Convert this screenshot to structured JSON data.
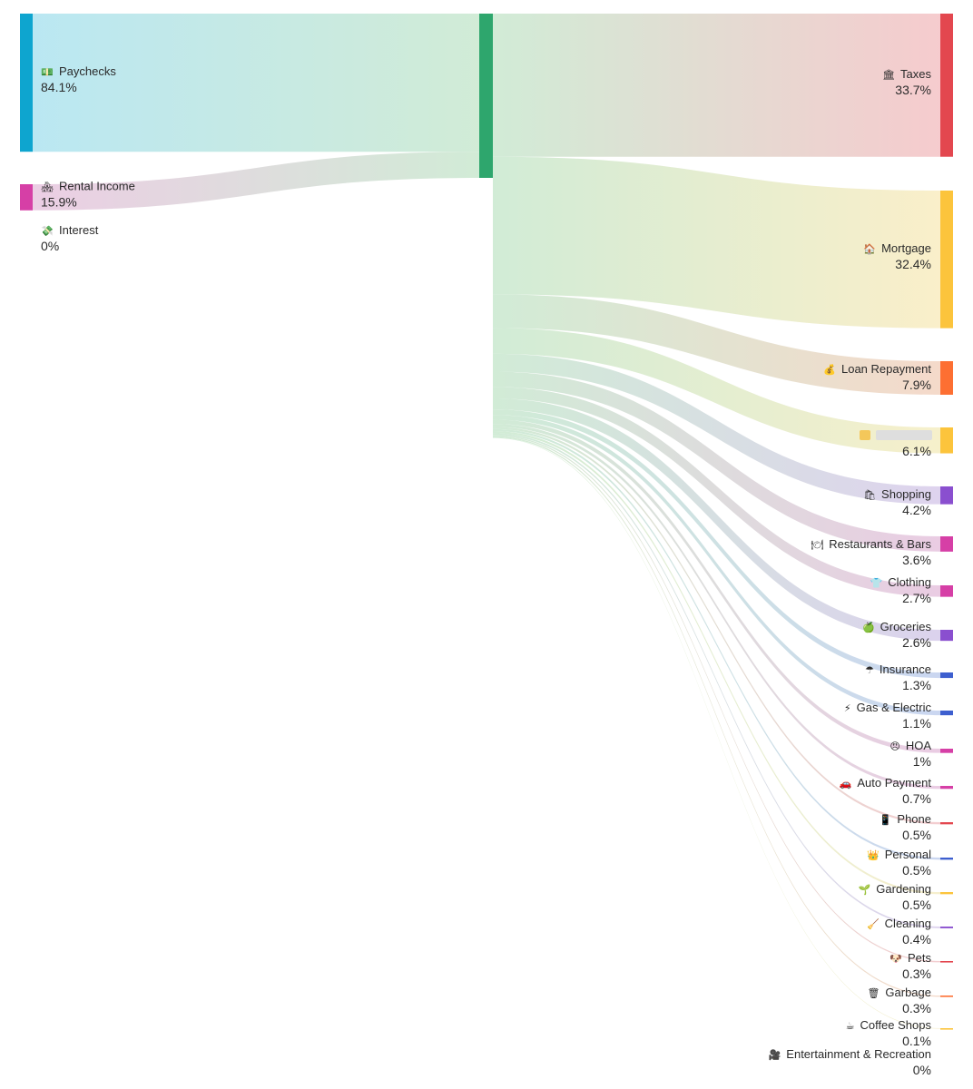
{
  "chart_data": {
    "type": "sankey",
    "sources": [
      {
        "name": "Paychecks",
        "icon": "💵",
        "icon_name": "money-icon",
        "pct": "84.1%",
        "value": 84.1,
        "color": "#0ea5cf",
        "link_color": "#aee3f0"
      },
      {
        "name": "Rental Income",
        "icon": "🏘",
        "icon_name": "houses-icon",
        "pct": "15.9%",
        "value": 15.9,
        "color": "#d63fa6",
        "link_color": "#e8c5df"
      },
      {
        "name": "Interest",
        "icon": "💸",
        "icon_name": "money-wings-icon",
        "pct": "0%",
        "value": 0,
        "color": "#7c6fd8",
        "link_color": "#dcd7f5"
      }
    ],
    "hub": {
      "color": "#2ea66d",
      "link_color": "#c9e8cf"
    },
    "targets": [
      {
        "name": "Taxes",
        "icon": "🏛",
        "icon_name": "government-building-icon",
        "pct": "33.7%",
        "value": 33.7,
        "color": "#e3474f",
        "link_color": "#f4c2c5"
      },
      {
        "name": "Mortgage",
        "icon": "🏠",
        "icon_name": "house-icon",
        "pct": "32.4%",
        "value": 32.4,
        "color": "#fcc43c",
        "link_color": "#f9ecc0"
      },
      {
        "name": "Loan Repayment",
        "icon": "💰",
        "icon_name": "money-bag-icon",
        "pct": "7.9%",
        "value": 7.9,
        "color": "#fd6f32",
        "link_color": "#f3d3c1"
      },
      {
        "name": "",
        "icon": "",
        "icon_name": "redacted-icon",
        "pct": "6.1%",
        "value": 6.1,
        "color": "#fcc43c",
        "link_color": "#f5edc2",
        "redacted": true
      },
      {
        "name": "Shopping",
        "icon": "🛍",
        "icon_name": "shopping-bags-icon",
        "pct": "4.2%",
        "value": 4.2,
        "color": "#8a4fcf",
        "link_color": "#d8cbeb"
      },
      {
        "name": "Restaurants & Bars",
        "icon": "🍽",
        "icon_name": "plate-icon",
        "pct": "3.6%",
        "value": 3.6,
        "color": "#d63fa6",
        "link_color": "#e6c3de"
      },
      {
        "name": "Clothing",
        "icon": "👕",
        "icon_name": "shirt-icon",
        "pct": "2.7%",
        "value": 2.7,
        "color": "#d63fa6",
        "link_color": "#e6c3de"
      },
      {
        "name": "Groceries",
        "icon": "🍏",
        "icon_name": "apple-icon",
        "pct": "2.6%",
        "value": 2.6,
        "color": "#8a4fcf",
        "link_color": "#d5caea"
      },
      {
        "name": "Insurance",
        "icon": "☂",
        "icon_name": "umbrella-icon",
        "pct": "1.3%",
        "value": 1.3,
        "color": "#3d5fcf",
        "link_color": "#c1cfee"
      },
      {
        "name": "Gas & Electric",
        "icon": "⚡",
        "icon_name": "lightning-icon",
        "pct": "1.1%",
        "value": 1.1,
        "color": "#3d5fcf",
        "link_color": "#c1cfee"
      },
      {
        "name": "HOA",
        "icon": "😠",
        "icon_name": "angry-face-icon",
        "pct": "1%",
        "value": 1.0,
        "color": "#d63fa6",
        "link_color": "#e6c3de"
      },
      {
        "name": "Auto Payment",
        "icon": "🚗",
        "icon_name": "car-icon",
        "pct": "0.7%",
        "value": 0.7,
        "color": "#d63fa6",
        "link_color": "#e6c3de"
      },
      {
        "name": "Phone",
        "icon": "📱",
        "icon_name": "phone-icon",
        "pct": "0.5%",
        "value": 0.5,
        "color": "#e3474f",
        "link_color": "#f1c4c7"
      },
      {
        "name": "Personal",
        "icon": "👑",
        "icon_name": "crown-icon",
        "pct": "0.5%",
        "value": 0.5,
        "color": "#3d5fcf",
        "link_color": "#c1cfee"
      },
      {
        "name": "Gardening",
        "icon": "🌱",
        "icon_name": "seedling-icon",
        "pct": "0.5%",
        "value": 0.5,
        "color": "#fcc43c",
        "link_color": "#f5ecc4"
      },
      {
        "name": "Cleaning",
        "icon": "🧹",
        "icon_name": "broom-icon",
        "pct": "0.4%",
        "value": 0.4,
        "color": "#8a4fcf",
        "link_color": "#d8cbeb"
      },
      {
        "name": "Pets",
        "icon": "🐶",
        "icon_name": "dog-icon",
        "pct": "0.3%",
        "value": 0.3,
        "color": "#e3474f",
        "link_color": "#f1c4c7"
      },
      {
        "name": "Garbage",
        "icon": "🗑",
        "icon_name": "trash-icon",
        "pct": "0.3%",
        "value": 0.3,
        "color": "#fd6f32",
        "link_color": "#f3d3c1"
      },
      {
        "name": "Coffee Shops",
        "icon": "☕",
        "icon_name": "coffee-icon",
        "pct": "0.1%",
        "value": 0.1,
        "color": "#fcc43c",
        "link_color": "#f5ecc4"
      },
      {
        "name": "Entertainment & Recreation",
        "icon": "🎥",
        "icon_name": "movie-camera-icon",
        "pct": "0%",
        "value": 0,
        "color": "#8a4fcf",
        "link_color": "#d8cbeb"
      }
    ]
  }
}
